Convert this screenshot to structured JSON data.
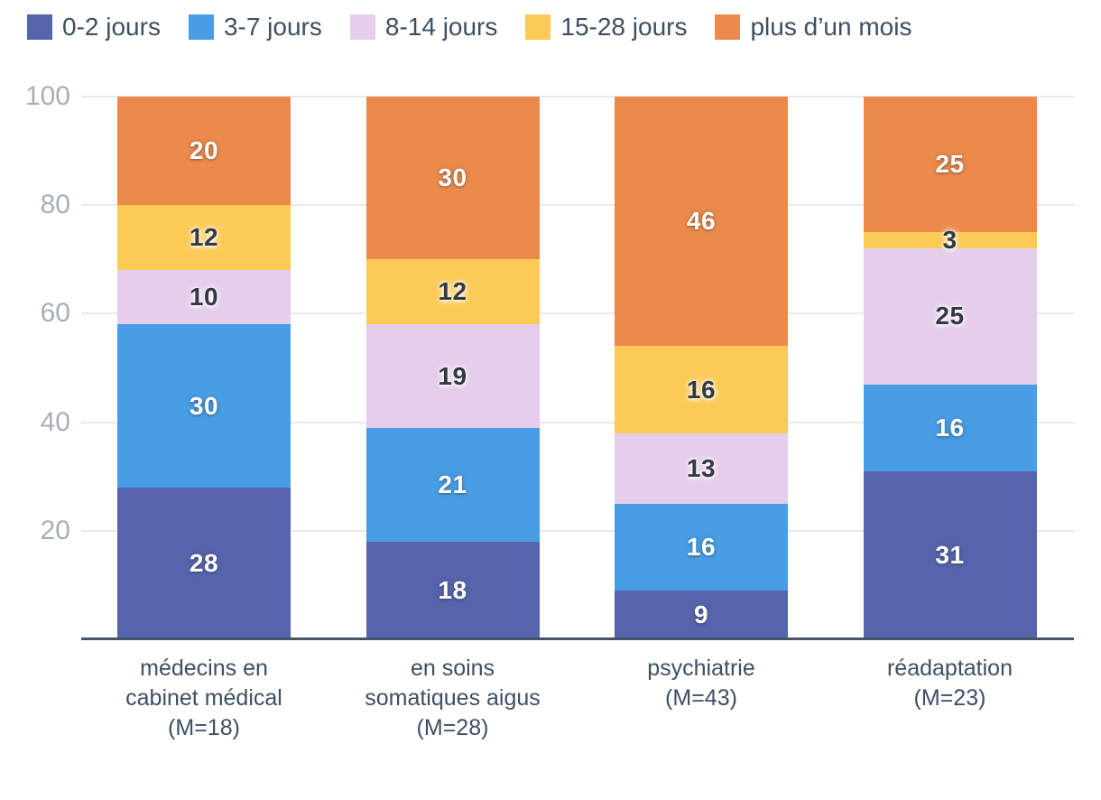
{
  "chart_data": {
    "type": "bar",
    "stacked": true,
    "categories": [
      "médecins en cabinet médical (M=18)",
      "en soins somatiques aigus (M=28)",
      "psychiatrie (M=43)",
      "réadaptation (M=23)"
    ],
    "category_label_lines": [
      [
        "médecins en",
        "cabinet médical",
        "(M=18)"
      ],
      [
        "en soins",
        "somatiques aigus",
        "(M=28)"
      ],
      [
        "psychiatrie",
        "(M=43)"
      ],
      [
        "réadaptation",
        "(M=23)"
      ]
    ],
    "series": [
      {
        "name": "0-2 jours",
        "color": "#5664ac",
        "value_text": "light",
        "values": [
          28,
          18,
          9,
          31
        ]
      },
      {
        "name": "3-7 jours",
        "color": "#489de5",
        "value_text": "light",
        "values": [
          30,
          21,
          16,
          16
        ]
      },
      {
        "name": "8-14 jours",
        "color": "#e5cdec",
        "value_text": "dark",
        "values": [
          10,
          19,
          13,
          25
        ]
      },
      {
        "name": "15-28 jours",
        "color": "#fcca55",
        "value_text": "dark",
        "values": [
          12,
          12,
          16,
          3
        ]
      },
      {
        "name": "plus d’un mois",
        "color": "#ec8a4b",
        "value_text": "light",
        "values": [
          20,
          30,
          46,
          25
        ]
      }
    ],
    "ylim": [
      0,
      100
    ],
    "yticks": [
      20,
      40,
      60,
      80,
      100
    ],
    "grid": true,
    "legend_position": "top-left",
    "title": "",
    "xlabel": "",
    "ylabel": ""
  },
  "colors": {
    "grid_line": "#e9e9e9",
    "axis_line": "#475569",
    "tick_label": "#a8aeb8",
    "category_label": "#3d4f63",
    "legend_label": "#3d4f63",
    "value_light": "#ffffff",
    "value_dark": "#333843",
    "background": "#ffffff"
  }
}
